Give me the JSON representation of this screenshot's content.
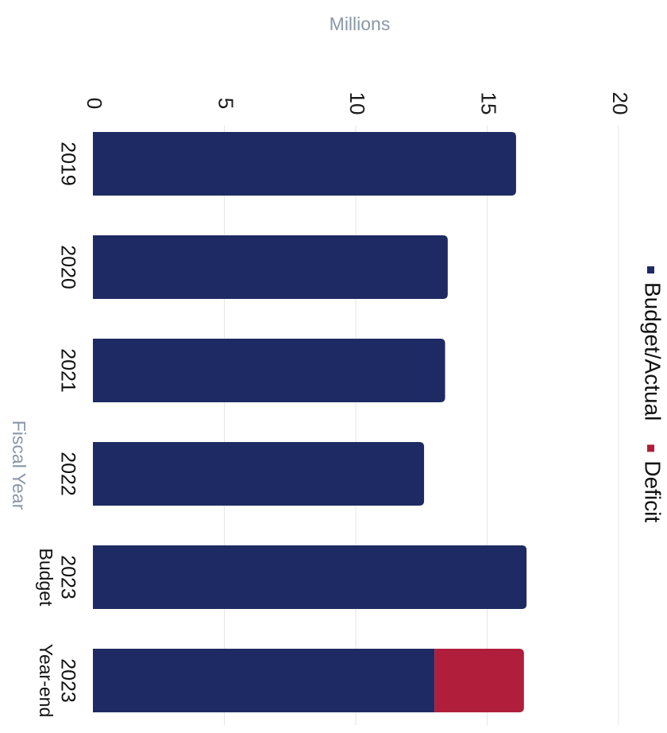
{
  "chart_data": {
    "type": "bar",
    "orientation": "horizontal",
    "stacked": true,
    "categories": [
      [
        "2019"
      ],
      [
        "2020"
      ],
      [
        "2021"
      ],
      [
        "2022"
      ],
      [
        "2023",
        "Budget"
      ],
      [
        "2023",
        "Year-end"
      ]
    ],
    "series": [
      {
        "name": "Budget/Actual",
        "color": "#1e2a63",
        "values": [
          16.1,
          13.5,
          13.4,
          12.6,
          16.5,
          13.0
        ]
      },
      {
        "name": "Deficit",
        "color": "#b01e3c",
        "values": [
          0,
          0,
          0,
          0,
          0,
          3.4
        ]
      }
    ],
    "value_axis": {
      "label": "Millions",
      "min": 0,
      "max": 20,
      "ticks": [
        0,
        5,
        10,
        15,
        20
      ]
    },
    "category_axis": {
      "label": "Fiscal Year"
    },
    "grid": true,
    "legend": "right"
  }
}
